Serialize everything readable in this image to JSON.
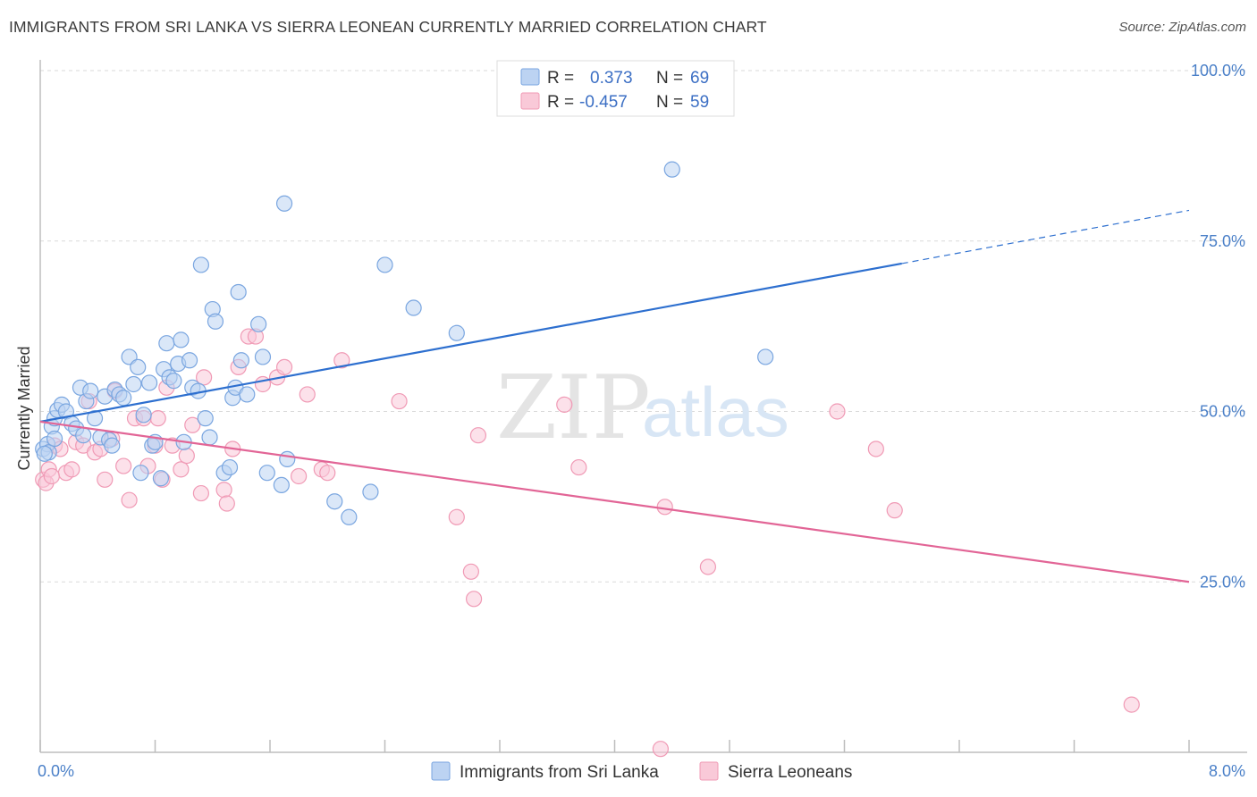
{
  "title": "IMMIGRANTS FROM SRI LANKA VS SIERRA LEONEAN CURRENTLY MARRIED CORRELATION CHART",
  "source": "Source: ZipAtlas.com",
  "watermark": {
    "zip": "ZIP",
    "atlas": "atlas"
  },
  "chart_data": {
    "type": "scatter",
    "ylabel": "Currently Married",
    "xlim": [
      0,
      8
    ],
    "ylim": [
      0,
      100
    ],
    "x_tick_labels": [
      "0.0%",
      "8.0%"
    ],
    "y_tick_labels": [
      "100.0%",
      "75.0%",
      "50.0%",
      "25.0%"
    ],
    "y_ticks": [
      100,
      75,
      50,
      25
    ],
    "grid": true,
    "legend_position": "top-center",
    "stats": [
      {
        "r_label": "R =",
        "r_value": "0.373",
        "n_label": "N =",
        "n_value": "69",
        "color": "#7aa6e0"
      },
      {
        "r_label": "R =",
        "r_value": "-0.457",
        "n_label": "N =",
        "n_value": "59",
        "color": "#f09ab5"
      }
    ],
    "series": [
      {
        "name": "Immigrants from Sri Lanka",
        "color": "#7aa6e0",
        "line_color": "#2d6fcf",
        "trend": {
          "x0": 0,
          "y0": 48.5,
          "x1": 6.0,
          "y1": 71.7,
          "x_ext": 8.0,
          "y_ext": 79.5
        },
        "points": [
          [
            0.02,
            44.5
          ],
          [
            0.05,
            45.2
          ],
          [
            0.08,
            47.8
          ],
          [
            0.1,
            49.0
          ],
          [
            0.12,
            50.2
          ],
          [
            0.15,
            51.0
          ],
          [
            0.18,
            50.0
          ],
          [
            0.22,
            48.2
          ],
          [
            0.25,
            47.5
          ],
          [
            0.28,
            53.5
          ],
          [
            0.32,
            51.5
          ],
          [
            0.35,
            53.0
          ],
          [
            0.38,
            49.0
          ],
          [
            0.42,
            46.2
          ],
          [
            0.45,
            52.2
          ],
          [
            0.48,
            45.8
          ],
          [
            0.52,
            53.2
          ],
          [
            0.55,
            52.5
          ],
          [
            0.58,
            52.0
          ],
          [
            0.62,
            58.0
          ],
          [
            0.65,
            54.0
          ],
          [
            0.68,
            56.5
          ],
          [
            0.7,
            41.0
          ],
          [
            0.72,
            49.5
          ],
          [
            0.76,
            54.2
          ],
          [
            0.78,
            45.0
          ],
          [
            0.8,
            45.5
          ],
          [
            0.84,
            40.2
          ],
          [
            0.86,
            56.2
          ],
          [
            0.88,
            60.0
          ],
          [
            0.9,
            55.0
          ],
          [
            0.93,
            54.5
          ],
          [
            0.96,
            57.0
          ],
          [
            0.98,
            60.5
          ],
          [
            1.0,
            45.5
          ],
          [
            1.04,
            57.5
          ],
          [
            1.06,
            53.5
          ],
          [
            1.1,
            53.0
          ],
          [
            1.12,
            71.5
          ],
          [
            1.15,
            49.0
          ],
          [
            1.18,
            46.2
          ],
          [
            1.2,
            65.0
          ],
          [
            1.22,
            63.2
          ],
          [
            1.28,
            41.0
          ],
          [
            1.32,
            41.8
          ],
          [
            1.34,
            52.0
          ],
          [
            1.36,
            53.5
          ],
          [
            1.38,
            67.5
          ],
          [
            1.4,
            57.5
          ],
          [
            1.44,
            52.5
          ],
          [
            1.52,
            62.8
          ],
          [
            1.55,
            58.0
          ],
          [
            1.58,
            41.0
          ],
          [
            1.68,
            39.2
          ],
          [
            1.7,
            80.5
          ],
          [
            1.72,
            43.0
          ],
          [
            2.05,
            36.8
          ],
          [
            2.15,
            34.5
          ],
          [
            2.3,
            38.2
          ],
          [
            2.4,
            71.5
          ],
          [
            2.6,
            65.2
          ],
          [
            2.9,
            61.5
          ],
          [
            4.4,
            85.5
          ],
          [
            5.05,
            58.0
          ],
          [
            0.06,
            44.0
          ],
          [
            0.03,
            43.8
          ],
          [
            0.1,
            46.0
          ],
          [
            0.3,
            46.5
          ],
          [
            0.5,
            45.0
          ]
        ]
      },
      {
        "name": "Sierra Leoneans",
        "color": "#f09ab5",
        "line_color": "#e26596",
        "trend": {
          "x0": 0,
          "y0": 48.5,
          "x1": 8.0,
          "y1": 25.0
        },
        "points": [
          [
            0.02,
            40.0
          ],
          [
            0.04,
            39.5
          ],
          [
            0.06,
            41.5
          ],
          [
            0.1,
            45.0
          ],
          [
            0.14,
            44.5
          ],
          [
            0.18,
            41.0
          ],
          [
            0.22,
            41.5
          ],
          [
            0.25,
            45.5
          ],
          [
            0.3,
            45.0
          ],
          [
            0.34,
            51.5
          ],
          [
            0.38,
            44.0
          ],
          [
            0.42,
            44.5
          ],
          [
            0.45,
            40.0
          ],
          [
            0.5,
            46.0
          ],
          [
            0.52,
            53.0
          ],
          [
            0.58,
            42.0
          ],
          [
            0.62,
            37.0
          ],
          [
            0.66,
            49.0
          ],
          [
            0.72,
            49.0
          ],
          [
            0.75,
            42.0
          ],
          [
            0.8,
            45.0
          ],
          [
            0.82,
            49.0
          ],
          [
            0.85,
            40.0
          ],
          [
            0.88,
            53.5
          ],
          [
            0.92,
            45.0
          ],
          [
            0.98,
            41.5
          ],
          [
            1.02,
            43.5
          ],
          [
            1.06,
            48.0
          ],
          [
            1.12,
            38.0
          ],
          [
            1.14,
            55.0
          ],
          [
            1.28,
            38.5
          ],
          [
            1.3,
            36.5
          ],
          [
            1.34,
            44.5
          ],
          [
            1.38,
            56.5
          ],
          [
            1.45,
            61.0
          ],
          [
            1.5,
            61.0
          ],
          [
            1.55,
            54.0
          ],
          [
            1.65,
            55.0
          ],
          [
            1.7,
            56.5
          ],
          [
            1.8,
            40.5
          ],
          [
            1.86,
            52.5
          ],
          [
            1.96,
            41.5
          ],
          [
            2.0,
            41.0
          ],
          [
            2.1,
            57.5
          ],
          [
            2.5,
            51.5
          ],
          [
            2.9,
            34.5
          ],
          [
            3.0,
            26.5
          ],
          [
            3.02,
            22.5
          ],
          [
            3.05,
            46.5
          ],
          [
            3.65,
            51.0
          ],
          [
            3.75,
            41.8
          ],
          [
            4.32,
            0.5
          ],
          [
            4.35,
            36.0
          ],
          [
            4.65,
            27.2
          ],
          [
            5.55,
            50.0
          ],
          [
            5.82,
            44.5
          ],
          [
            5.95,
            35.5
          ],
          [
            7.6,
            7.0
          ],
          [
            0.08,
            40.5
          ]
        ]
      }
    ]
  },
  "legend": {
    "series1": "Immigrants from Sri Lanka",
    "series2": "Sierra Leoneans"
  }
}
